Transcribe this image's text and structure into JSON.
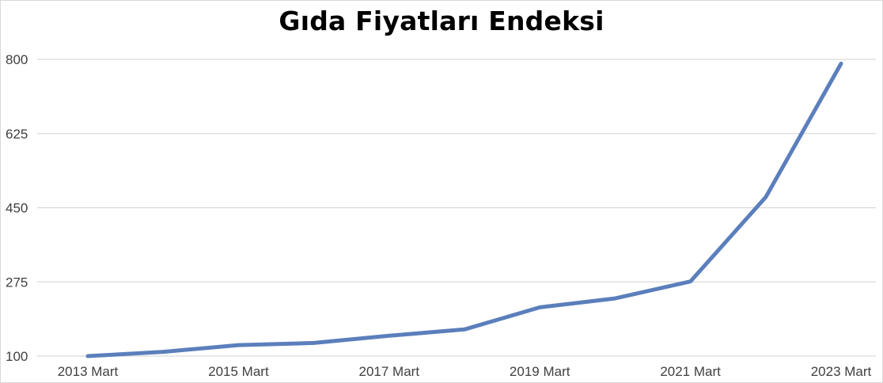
{
  "chart_data": {
    "type": "line",
    "title": "Gıda Fiyatları Endeksi",
    "xlabel": "",
    "ylabel": "",
    "x": [
      "2013 Mart",
      "2014 Mart",
      "2015 Mart",
      "2016 Mart",
      "2017 Mart",
      "2018 Mart",
      "2019 Mart",
      "2020 Mart",
      "2021 Mart",
      "2022 Mart",
      "2023 Mart"
    ],
    "x_tick_labels": [
      "2013 Mart",
      "2015 Mart",
      "2017 Mart",
      "2019 Mart",
      "2021 Mart",
      "2023 Mart"
    ],
    "y_ticks": [
      100,
      275,
      450,
      625,
      800
    ],
    "ylim": [
      100,
      800
    ],
    "grid": true,
    "legend": "none",
    "series": [
      {
        "values": [
          100,
          110,
          126,
          131,
          148,
          163,
          215,
          236,
          276,
          475,
          790
        ],
        "color": "#5b7fbc"
      }
    ]
  }
}
